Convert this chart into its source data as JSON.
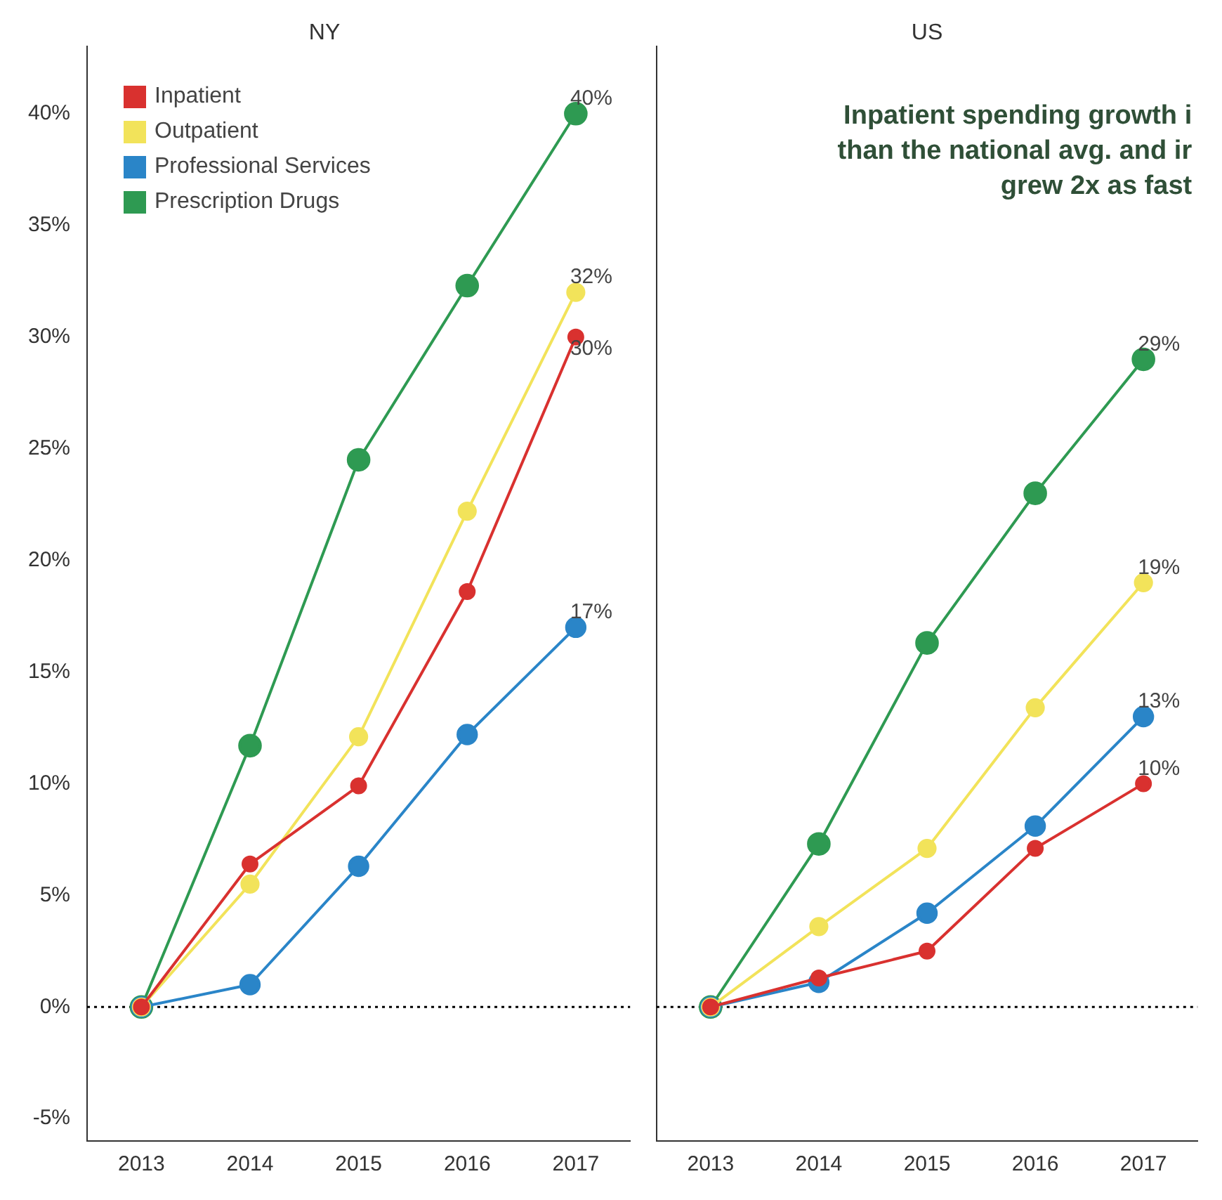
{
  "chart_data": [
    {
      "type": "line",
      "title": "NY",
      "categories": [
        "2013",
        "2014",
        "2015",
        "2016",
        "2017"
      ],
      "series": [
        {
          "name": "Inpatient",
          "color": "#d9312f",
          "values": [
            0,
            6.4,
            9.9,
            18.6,
            30
          ],
          "value_labels": [
            null,
            null,
            null,
            null,
            "30%"
          ]
        },
        {
          "name": "Outpatient",
          "color": "#f2e35a",
          "values": [
            0,
            5.5,
            12.1,
            22.2,
            32
          ],
          "value_labels": [
            null,
            null,
            null,
            null,
            "32%"
          ]
        },
        {
          "name": "Professional Services",
          "color": "#2a85c8",
          "values": [
            0,
            1,
            6.3,
            12.2,
            17
          ],
          "value_labels": [
            null,
            null,
            null,
            null,
            "17%"
          ]
        },
        {
          "name": "Prescription Drugs",
          "color": "#2e9a52",
          "values": [
            0,
            11.7,
            24.5,
            32.3,
            40
          ],
          "value_labels": [
            null,
            null,
            null,
            null,
            "40%"
          ]
        }
      ],
      "ylim": [
        -6,
        43
      ],
      "yticks": [
        {
          "value": -5,
          "label": "-5%"
        },
        {
          "value": 0,
          "label": "0%"
        },
        {
          "value": 5,
          "label": "5%"
        },
        {
          "value": 10,
          "label": "10%"
        },
        {
          "value": 15,
          "label": "15%"
        },
        {
          "value": 20,
          "label": "20%"
        },
        {
          "value": 25,
          "label": "25%"
        },
        {
          "value": 30,
          "label": "30%"
        },
        {
          "value": 35,
          "label": "35%"
        },
        {
          "value": 40,
          "label": "40%"
        }
      ],
      "ref_lines": [
        {
          "axis": "y",
          "value": 0,
          "color": "#000000",
          "line_style": "dotted"
        }
      ],
      "legend": "top left",
      "marker": "circle",
      "grid": false
    },
    {
      "type": "line",
      "title": "US",
      "categories": [
        "2013",
        "2014",
        "2015",
        "2016",
        "2017"
      ],
      "series": [
        {
          "color": "#d9312f",
          "values": [
            0,
            1.3,
            2.5,
            7.1,
            10
          ],
          "value_labels": [
            null,
            null,
            null,
            null,
            "10%"
          ]
        },
        {
          "color": "#f2e35a",
          "values": [
            0,
            3.6,
            7.1,
            13.4,
            19
          ],
          "value_labels": [
            null,
            null,
            null,
            null,
            "19%"
          ]
        },
        {
          "color": "#2a85c8",
          "values": [
            0,
            1.1,
            4.2,
            8.1,
            13
          ],
          "value_labels": [
            null,
            null,
            null,
            null,
            "13%"
          ]
        },
        {
          "color": "#2e9a52",
          "values": [
            0,
            7.3,
            16.3,
            23,
            29
          ],
          "value_labels": [
            null,
            null,
            null,
            null,
            "29%"
          ]
        }
      ],
      "ylim": [
        -6,
        43
      ],
      "tick_labels": "x",
      "annotations": [
        "Inpatient spending growth i",
        "than the national avg. and ir",
        "grew 2x as fast"
      ],
      "ref_lines": [
        {
          "axis": "y",
          "value": 0,
          "color": "#000000",
          "line_style": "dotted"
        }
      ],
      "legend": false,
      "marker": "circle",
      "grid": false
    }
  ]
}
